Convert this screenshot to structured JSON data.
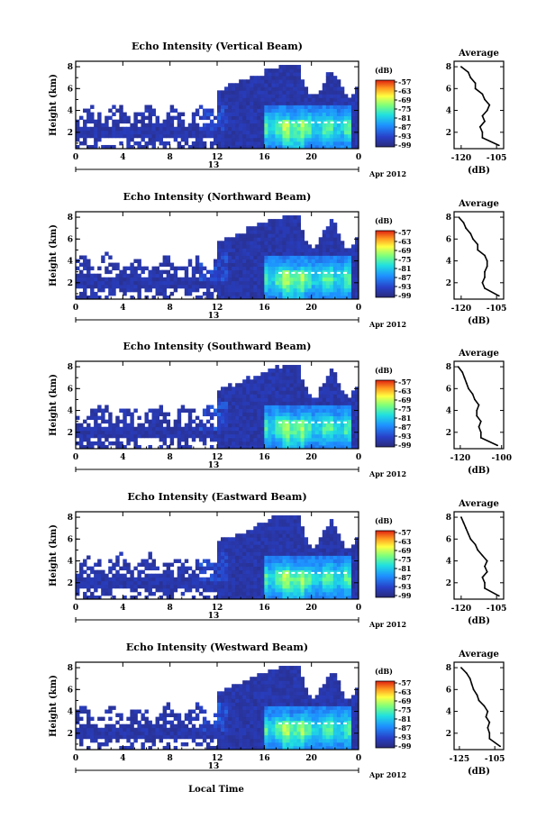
{
  "figure": {
    "date_label": "Apr 2012",
    "day_label": "13",
    "xlabel": "Local Time",
    "ylabel": "Height (km)",
    "colorbar_unit": "(dB)",
    "colorbar_ticks": [
      "-57",
      "-63",
      "-69",
      "-75",
      "-81",
      "-87",
      "-93",
      "-99"
    ],
    "avg_title": "Average",
    "avg_xlabel": "(dB)"
  },
  "chart_data": [
    {
      "type": "heatmap",
      "title": "Echo Intensity (Vertical Beam)",
      "xlabel": "",
      "ylabel": "Height (km)",
      "x_ticks": [
        "0",
        "4",
        "8",
        "12",
        "16",
        "20",
        "0"
      ],
      "y_ticks": [
        "2",
        "4",
        "6",
        "8"
      ],
      "xlim": [
        0,
        24
      ],
      "ylim": [
        0.5,
        8.5
      ],
      "color_range": [
        -99,
        -57
      ],
      "colorscale": "jet",
      "avg_profile": {
        "xlim": [
          -123,
          -102
        ],
        "x_ticks": [
          "-120",
          "-105"
        ],
        "heights": [
          0.8,
          1.5,
          2,
          2.5,
          3,
          3.5,
          4,
          4.5,
          5,
          5.5,
          6,
          6.5,
          7,
          7.5,
          8
        ],
        "values": [
          -104,
          -111,
          -111,
          -112,
          -110,
          -111,
          -109,
          -108,
          -110,
          -111,
          -114,
          -114,
          -116,
          -117,
          -120
        ]
      }
    },
    {
      "type": "heatmap",
      "title": "Echo Intensity (Northward Beam)",
      "xlabel": "",
      "ylabel": "Height (km)",
      "x_ticks": [
        "0",
        "4",
        "8",
        "12",
        "16",
        "20",
        "0"
      ],
      "y_ticks": [
        "2",
        "4",
        "6",
        "8"
      ],
      "xlim": [
        0,
        24
      ],
      "ylim": [
        0.5,
        8.5
      ],
      "color_range": [
        -99,
        -57
      ],
      "colorscale": "jet",
      "avg_profile": {
        "xlim": [
          -123,
          -102
        ],
        "x_ticks": [
          "-120",
          "-105"
        ],
        "heights": [
          0.8,
          1.5,
          2,
          2.5,
          3,
          3.5,
          4,
          4.5,
          5,
          5.5,
          6,
          6.5,
          7,
          7.5,
          8
        ],
        "values": [
          -104,
          -110,
          -111,
          -110,
          -110,
          -109,
          -109,
          -110,
          -113,
          -113,
          -115,
          -116,
          -118,
          -119,
          -121
        ]
      }
    },
    {
      "type": "heatmap",
      "title": "Echo Intensity (Southward Beam)",
      "xlabel": "",
      "ylabel": "Height (km)",
      "x_ticks": [
        "0",
        "4",
        "8",
        "12",
        "16",
        "20",
        "0"
      ],
      "y_ticks": [
        "2",
        "4",
        "6",
        "8"
      ],
      "xlim": [
        0,
        24
      ],
      "ylim": [
        0.5,
        8.5
      ],
      "color_range": [
        -99,
        -57
      ],
      "colorscale": "jet",
      "avg_profile": {
        "xlim": [
          -123,
          -99
        ],
        "x_ticks": [
          "-120",
          "-100"
        ],
        "heights": [
          0.8,
          1.5,
          2,
          2.5,
          3,
          3.5,
          4,
          4.5,
          5,
          5.5,
          6,
          6.5,
          7,
          7.5,
          8
        ],
        "values": [
          -102,
          -110,
          -110,
          -111,
          -110,
          -112,
          -112,
          -111,
          -113,
          -114,
          -116,
          -117,
          -118,
          -119,
          -121
        ]
      }
    },
    {
      "type": "heatmap",
      "title": "Echo Intensity (Eastward Beam)",
      "xlabel": "",
      "ylabel": "Height (km)",
      "x_ticks": [
        "0",
        "4",
        "8",
        "12",
        "16",
        "20",
        "0"
      ],
      "y_ticks": [
        "2",
        "4",
        "6",
        "8"
      ],
      "xlim": [
        0,
        24
      ],
      "ylim": [
        0.5,
        8.5
      ],
      "color_range": [
        -99,
        -57
      ],
      "colorscale": "jet",
      "avg_profile": {
        "xlim": [
          -123,
          -102
        ],
        "x_ticks": [
          "-120",
          "-105"
        ],
        "heights": [
          0.8,
          1.5,
          2,
          2.5,
          3,
          3.5,
          4,
          4.5,
          5,
          5.5,
          6,
          6.5,
          7,
          7.5,
          8
        ],
        "values": [
          -104,
          -110,
          -110,
          -111,
          -109,
          -110,
          -109,
          -111,
          -113,
          -114,
          -116,
          -117,
          -118,
          -119,
          -120
        ]
      }
    },
    {
      "type": "heatmap",
      "title": "Echo Intensity (Westward Beam)",
      "xlabel": "Local Time",
      "ylabel": "Height (km)",
      "x_ticks": [
        "0",
        "4",
        "8",
        "12",
        "16",
        "20",
        "0"
      ],
      "y_ticks": [
        "2",
        "4",
        "6",
        "8"
      ],
      "xlim": [
        0,
        24
      ],
      "ylim": [
        0.5,
        8.5
      ],
      "color_range": [
        -99,
        -57
      ],
      "colorscale": "jet",
      "avg_profile": {
        "xlim": [
          -128,
          -100
        ],
        "x_ticks": [
          "-125",
          "-105"
        ],
        "heights": [
          0.8,
          1.5,
          2,
          2.5,
          3,
          3.5,
          4,
          4.5,
          5,
          5.5,
          6,
          6.5,
          7,
          7.5,
          8
        ],
        "values": [
          -102,
          -108,
          -108,
          -109,
          -108,
          -110,
          -109,
          -111,
          -114,
          -115,
          -117,
          -118,
          -119,
          -121,
          -124
        ]
      }
    }
  ]
}
